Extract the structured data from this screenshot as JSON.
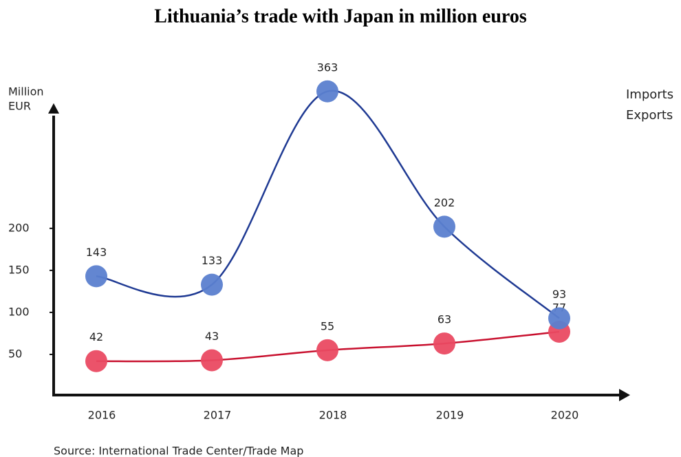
{
  "chart_data": {
    "type": "line",
    "title": "Lithuania’s trade with Japan in million euros",
    "ylabel": [
      "Million",
      "EUR"
    ],
    "source": "Source: International Trade Center/Trade Map",
    "categories": [
      "2016",
      "2017",
      "2018",
      "2019",
      "2020"
    ],
    "series": [
      {
        "name": "Imports",
        "color": "#c8102e",
        "marker_color": "#ea4a62",
        "values": [
          42,
          43,
          55,
          63,
          77
        ]
      },
      {
        "name": "Exports",
        "color": "#1f3a93",
        "marker_color": "#5b80cf",
        "values": [
          143,
          133,
          363,
          202,
          93
        ]
      }
    ],
    "ylim": [
      0,
      380
    ],
    "yticks": [
      50,
      100,
      150,
      200
    ],
    "legend": "top-right"
  }
}
